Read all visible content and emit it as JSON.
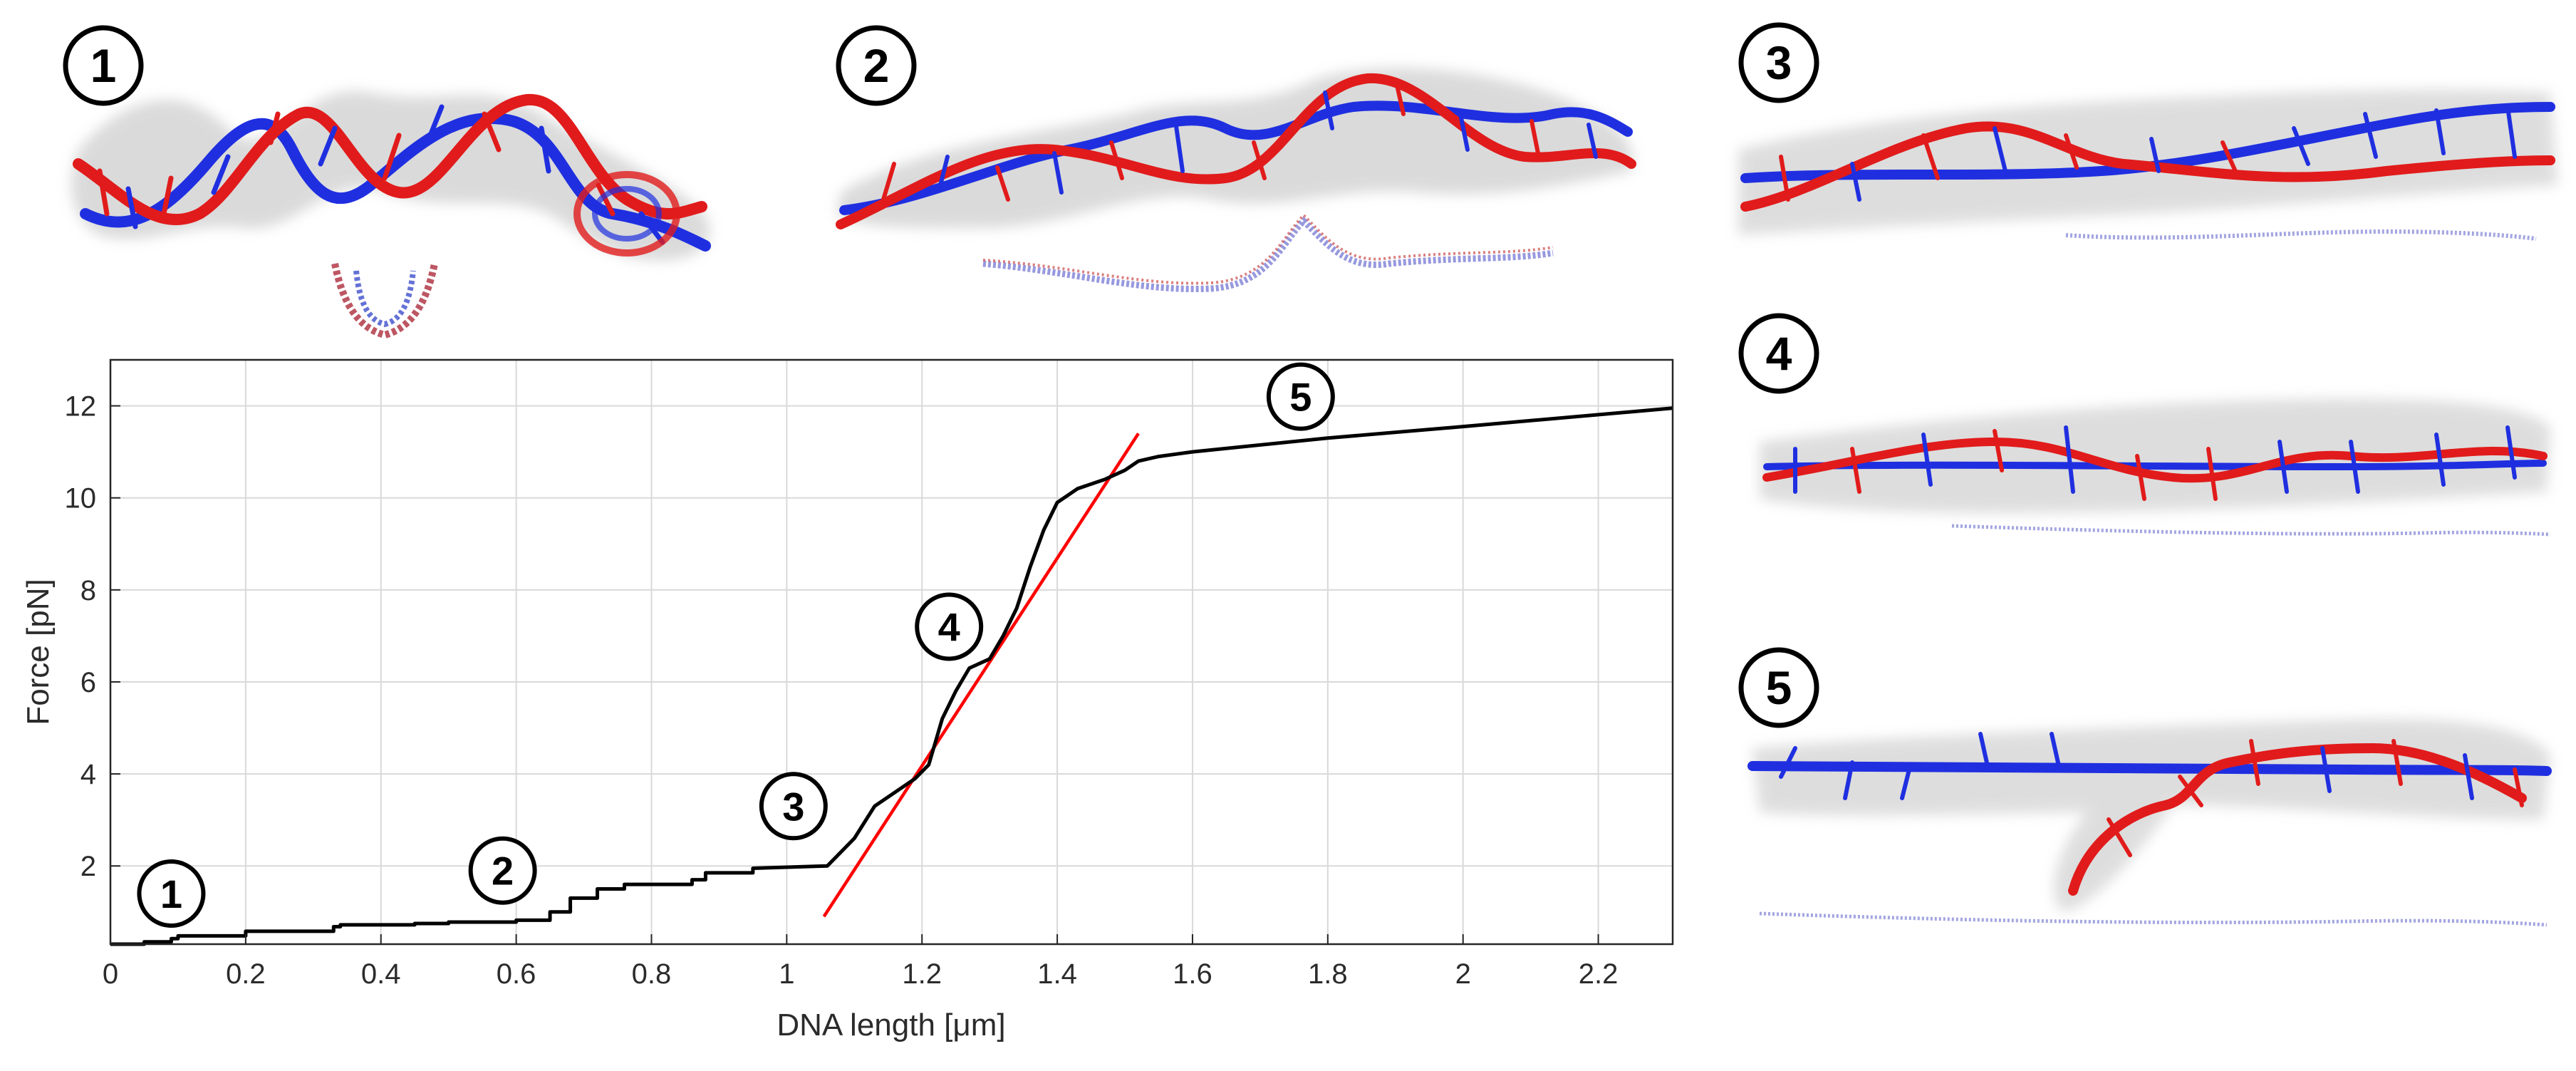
{
  "figure": {
    "panel_labels": [
      "1",
      "2",
      "3",
      "4",
      "5"
    ],
    "colors": {
      "strand_a": "#1f2fe0",
      "strand_b": "#e11b1b",
      "curve": "#000000",
      "fit_line": "#ff0000",
      "grid": "#d9d9d9",
      "axis": "#262626"
    }
  },
  "chart_data": {
    "type": "line",
    "xlabel": "DNA length [μm]",
    "ylabel": "Force [pN]",
    "xlim": [
      0,
      2.31
    ],
    "ylim": [
      0.3,
      13
    ],
    "grid": true,
    "x_ticks": [
      0,
      0.2,
      0.4,
      0.6,
      0.8,
      1,
      1.2,
      1.4,
      1.6,
      1.8,
      2,
      2.2
    ],
    "x_tick_labels": [
      "0",
      "0.2",
      "0.4",
      "0.6",
      "0.8",
      "1",
      "1.2",
      "1.4",
      "1.6",
      "1.8",
      "2",
      "2.2"
    ],
    "y_ticks": [
      2,
      4,
      6,
      8,
      10,
      12
    ],
    "y_tick_labels": [
      "2",
      "4",
      "6",
      "8",
      "10",
      "12"
    ],
    "series": [
      {
        "name": "force-extension",
        "color": "#000000",
        "x": [
          0,
          0.05,
          0.09,
          0.1,
          0.2,
          0.33,
          0.34,
          0.45,
          0.5,
          0.6,
          0.65,
          0.68,
          0.72,
          0.76,
          0.86,
          0.88,
          0.95,
          1.06,
          1.1,
          1.13,
          1.16,
          1.19,
          1.21,
          1.23,
          1.25,
          1.27,
          1.3,
          1.32,
          1.34,
          1.36,
          1.38,
          1.4,
          1.43,
          1.47,
          1.5,
          1.52,
          1.55,
          1.6,
          1.8,
          2.0,
          2.31
        ],
        "y": [
          0.3,
          0.35,
          0.42,
          0.48,
          0.58,
          0.68,
          0.72,
          0.75,
          0.78,
          0.82,
          1.0,
          1.3,
          1.5,
          1.6,
          1.7,
          1.85,
          1.95,
          2.0,
          2.6,
          3.3,
          3.6,
          3.9,
          4.2,
          5.2,
          5.8,
          6.3,
          6.5,
          7.0,
          7.6,
          8.5,
          9.3,
          9.9,
          10.2,
          10.4,
          10.6,
          10.8,
          10.9,
          11.0,
          11.3,
          11.55,
          11.95
        ]
      },
      {
        "name": "linear fit",
        "color": "#ff0000",
        "x": [
          1.055,
          1.52
        ],
        "y": [
          0.9,
          11.4
        ]
      }
    ],
    "annotations": [
      {
        "label": "1",
        "x": 0.09,
        "y": 1.4
      },
      {
        "label": "2",
        "x": 0.58,
        "y": 1.9
      },
      {
        "label": "3",
        "x": 1.01,
        "y": 3.3
      },
      {
        "label": "4",
        "x": 1.24,
        "y": 7.2
      },
      {
        "label": "5",
        "x": 1.76,
        "y": 12.2
      }
    ]
  }
}
